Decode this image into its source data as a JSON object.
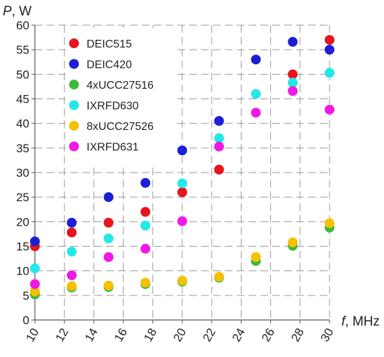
{
  "chart_data": {
    "type": "scatter",
    "xlabel_var": "f",
    "xlabel_unit": ", MHz",
    "ylabel_var": "P",
    "ylabel_unit": ", W",
    "xlim": [
      10,
      30
    ],
    "ylim": [
      0,
      60
    ],
    "xticks": [
      "10",
      "12",
      "14",
      "16",
      "18",
      "20",
      "22",
      "24",
      "26",
      "28",
      "30"
    ],
    "yticks": [
      "0",
      "5",
      "10",
      "15",
      "20",
      "25",
      "30",
      "35",
      "40",
      "45",
      "50",
      "55",
      "60"
    ],
    "grid": true,
    "legend_position": "top-left",
    "series": [
      {
        "name": "DEIC515",
        "color": "#e8141c",
        "x": [
          10,
          12.5,
          15,
          17.5,
          20,
          22.5,
          27.5,
          30
        ],
        "y": [
          15,
          17.8,
          19.8,
          22,
          26,
          30.6,
          50,
          57
        ]
      },
      {
        "name": "DEIC420",
        "color": "#1c1fd6",
        "x": [
          10,
          12.5,
          15,
          17.5,
          20,
          22.5,
          25,
          27.5,
          30
        ],
        "y": [
          16,
          19.8,
          25,
          27.9,
          34.5,
          40.5,
          53,
          56.6,
          55
        ]
      },
      {
        "name": "4xUCC27516",
        "color": "#3cb83c",
        "x": [
          10,
          12.5,
          15,
          17.5,
          20,
          22.5,
          25,
          27.5,
          30
        ],
        "y": [
          5.2,
          6.6,
          6.7,
          7.3,
          7.8,
          8.6,
          12,
          15.1,
          18.8
        ]
      },
      {
        "name": "IXRFD630",
        "color": "#22e8e8",
        "x": [
          10,
          12.5,
          15,
          17.5,
          20,
          22.5,
          25,
          27.5,
          30
        ],
        "y": [
          10.5,
          13.9,
          16.6,
          19.2,
          27.8,
          37,
          46,
          48.3,
          50.3
        ]
      },
      {
        "name": "8xUCC27526",
        "color": "#f5c000",
        "x": [
          10,
          12.5,
          15,
          17.5,
          20,
          22.5,
          25,
          27.5,
          30
        ],
        "y": [
          5.8,
          6.9,
          7.0,
          7.6,
          8.0,
          8.8,
          12.8,
          15.8,
          19.7
        ]
      },
      {
        "name": "IXRFD631",
        "color": "#f018e8",
        "x": [
          10,
          12.5,
          15,
          17.5,
          20,
          22.5,
          25,
          27.5,
          30
        ],
        "y": [
          7.3,
          9.1,
          12.8,
          14.5,
          20.1,
          35.3,
          42.2,
          46.6,
          42.8
        ]
      }
    ]
  }
}
